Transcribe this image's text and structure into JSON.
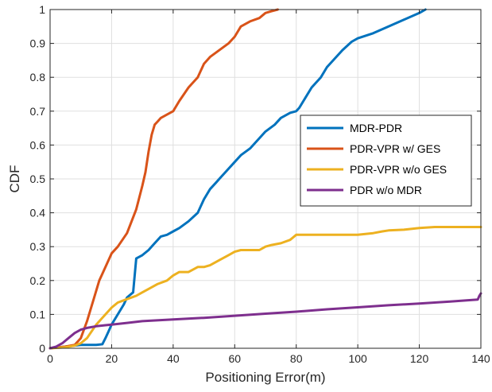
{
  "chart_data": {
    "type": "line",
    "title": "",
    "xlabel": "Positioning Error(m)",
    "ylabel": "CDF",
    "xlim": [
      0,
      140
    ],
    "ylim": [
      0,
      1
    ],
    "xticks": [
      0,
      20,
      40,
      60,
      80,
      100,
      120,
      140
    ],
    "yticks": [
      0,
      0.1,
      0.2,
      0.3,
      0.4,
      0.5,
      0.6,
      0.7,
      0.8,
      0.9,
      1
    ],
    "xtick_labels": [
      "0",
      "20",
      "40",
      "60",
      "80",
      "100",
      "120",
      "140"
    ],
    "ytick_labels": [
      "0",
      "0.1",
      "0.2",
      "0.3",
      "0.4",
      "0.5",
      "0.6",
      "0.7",
      "0.8",
      "0.9",
      "1"
    ],
    "grid": true,
    "legend_position": "right",
    "series": [
      {
        "name": "MDR-PDR",
        "color": "#0072BD",
        "x": [
          0,
          5,
          10,
          15,
          17,
          18,
          19,
          20,
          22,
          24,
          25,
          27,
          28,
          30,
          32,
          34,
          36,
          38,
          40,
          42,
          45,
          48,
          50,
          52,
          54,
          55,
          58,
          60,
          62,
          65,
          68,
          70,
          73,
          75,
          78,
          80,
          81,
          83,
          85,
          88,
          90,
          95,
          98,
          100,
          105,
          110,
          115,
          120,
          122
        ],
        "y": [
          0,
          0.005,
          0.01,
          0.01,
          0.012,
          0.03,
          0.05,
          0.07,
          0.1,
          0.13,
          0.15,
          0.165,
          0.265,
          0.275,
          0.29,
          0.31,
          0.33,
          0.335,
          0.345,
          0.355,
          0.375,
          0.4,
          0.44,
          0.47,
          0.49,
          0.5,
          0.53,
          0.55,
          0.57,
          0.59,
          0.62,
          0.64,
          0.66,
          0.68,
          0.695,
          0.7,
          0.71,
          0.74,
          0.77,
          0.8,
          0.83,
          0.88,
          0.905,
          0.915,
          0.93,
          0.95,
          0.97,
          0.99,
          1
        ]
      },
      {
        "name": "PDR-VPR w/ GES",
        "color": "#D95319",
        "x": [
          0,
          5,
          8,
          10,
          12,
          14,
          16,
          18,
          20,
          22,
          25,
          28,
          30,
          31,
          32,
          33,
          34,
          35,
          36,
          38,
          40,
          42,
          45,
          48,
          50,
          52,
          55,
          58,
          60,
          62,
          65,
          68,
          70,
          72,
          74
        ],
        "y": [
          0,
          0.005,
          0.01,
          0.03,
          0.08,
          0.14,
          0.2,
          0.24,
          0.28,
          0.3,
          0.34,
          0.41,
          0.48,
          0.52,
          0.58,
          0.63,
          0.66,
          0.67,
          0.68,
          0.69,
          0.7,
          0.73,
          0.77,
          0.8,
          0.84,
          0.86,
          0.88,
          0.9,
          0.92,
          0.95,
          0.965,
          0.975,
          0.99,
          0.995,
          1
        ]
      },
      {
        "name": "PDR-VPR w/o GES",
        "color": "#EDB120",
        "x": [
          0,
          5,
          8,
          10,
          12,
          15,
          18,
          20,
          22,
          25,
          28,
          30,
          32,
          35,
          38,
          40,
          42,
          45,
          48,
          50,
          52,
          55,
          58,
          60,
          62,
          65,
          68,
          70,
          72,
          75,
          78,
          80,
          90,
          100,
          105,
          108,
          110,
          115,
          120,
          125,
          130,
          135,
          140
        ],
        "y": [
          0,
          0.003,
          0.008,
          0.015,
          0.03,
          0.07,
          0.1,
          0.12,
          0.135,
          0.145,
          0.155,
          0.165,
          0.175,
          0.19,
          0.2,
          0.215,
          0.225,
          0.225,
          0.24,
          0.24,
          0.245,
          0.26,
          0.275,
          0.285,
          0.29,
          0.29,
          0.29,
          0.3,
          0.305,
          0.31,
          0.32,
          0.335,
          0.335,
          0.335,
          0.34,
          0.345,
          0.348,
          0.35,
          0.355,
          0.358,
          0.358,
          0.358,
          0.358
        ]
      },
      {
        "name": "PDR w/o MDR",
        "color": "#7E2F8E",
        "x": [
          0,
          2,
          4,
          6,
          8,
          10,
          12,
          15,
          18,
          20,
          25,
          30,
          40,
          50,
          60,
          70,
          80,
          90,
          100,
          110,
          120,
          130,
          139,
          139.5,
          140
        ],
        "y": [
          0,
          0.005,
          0.015,
          0.03,
          0.045,
          0.055,
          0.06,
          0.065,
          0.068,
          0.07,
          0.075,
          0.08,
          0.085,
          0.09,
          0.096,
          0.102,
          0.108,
          0.115,
          0.121,
          0.127,
          0.132,
          0.138,
          0.144,
          0.155,
          0.162
        ]
      }
    ]
  }
}
